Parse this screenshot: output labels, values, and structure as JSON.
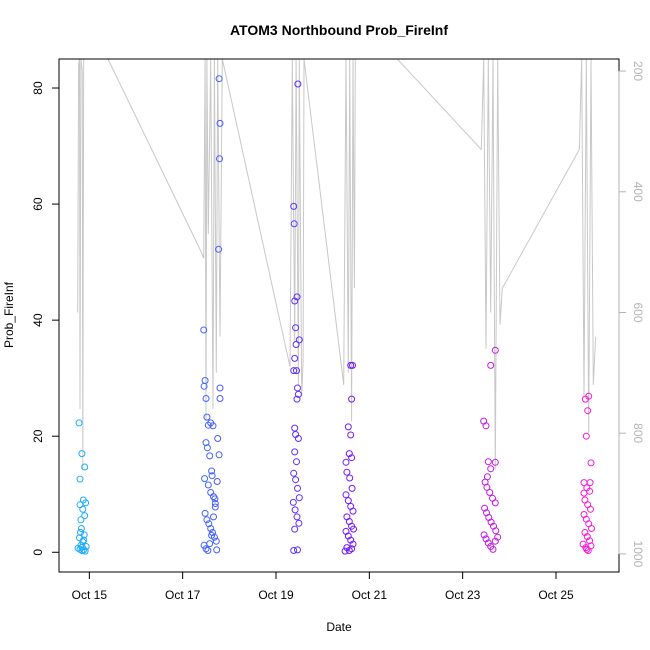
{
  "chart_data": {
    "type": "scatter",
    "title": "ATOM3 Northbound Prob_FireInf",
    "xlabel": "Date",
    "ylabel": "Prob_FireInf",
    "x_ticks": [
      "Oct 15",
      "Oct 17",
      "Oct 19",
      "Oct 21",
      "Oct 23",
      "Oct 25"
    ],
    "x_tick_days": [
      15,
      17,
      19,
      21,
      23,
      25
    ],
    "xlim": [
      14.35,
      26.35
    ],
    "ylim": [
      -3.4,
      85
    ],
    "y_ticks": [
      0,
      20,
      40,
      60,
      80
    ],
    "y2_ticks": [
      200,
      400,
      600,
      800,
      1000
    ],
    "y2lim": [
      1030,
      180
    ],
    "point_color_start": "#1ab0ff",
    "point_color_mid": "#6a1aff",
    "point_color_end": "#ff1ad6",
    "line_color": "#c8c8c8",
    "grid": false,
    "series": [
      {
        "values": [
          [
            14.78,
            22.3
          ],
          [
            14.8,
            0.5
          ],
          [
            14.82,
            1.2
          ],
          [
            14.84,
            0.3
          ],
          [
            14.79,
            2.5
          ],
          [
            14.81,
            3.4
          ],
          [
            14.83,
            4.1
          ],
          [
            14.85,
            0.9
          ],
          [
            14.86,
            1.8
          ],
          [
            14.88,
            0.4
          ],
          [
            14.8,
            8.2
          ],
          [
            14.87,
            9.0
          ],
          [
            14.9,
            14.7
          ],
          [
            14.84,
            17.0
          ],
          [
            14.8,
            12.6
          ],
          [
            14.9,
            6.3
          ],
          [
            14.92,
            8.5
          ],
          [
            14.86,
            7.4
          ],
          [
            14.82,
            5.6
          ],
          [
            14.88,
            2.1
          ],
          [
            14.91,
            0.2
          ],
          [
            14.93,
            1.0
          ],
          [
            14.76,
            0.7
          ],
          [
            14.89,
            3.0
          ],
          [
            17.45,
            38.3
          ],
          [
            17.48,
            29.6
          ],
          [
            17.46,
            28.6
          ],
          [
            17.5,
            26.5
          ],
          [
            17.52,
            23.3
          ],
          [
            17.55,
            21.9
          ],
          [
            17.6,
            22.3
          ],
          [
            17.65,
            21.8
          ],
          [
            17.5,
            18.9
          ],
          [
            17.53,
            18.0
          ],
          [
            17.58,
            16.6
          ],
          [
            17.62,
            14.0
          ],
          [
            17.47,
            12.7
          ],
          [
            17.55,
            11.6
          ],
          [
            17.6,
            10.3
          ],
          [
            17.66,
            9.6
          ],
          [
            17.7,
            8.4
          ],
          [
            17.48,
            6.7
          ],
          [
            17.52,
            5.6
          ],
          [
            17.56,
            4.9
          ],
          [
            17.6,
            4.1
          ],
          [
            17.64,
            3.4
          ],
          [
            17.68,
            2.6
          ],
          [
            17.72,
            1.9
          ],
          [
            17.46,
            1.2
          ],
          [
            17.5,
            0.6
          ],
          [
            17.54,
            0.3
          ],
          [
            17.58,
            1.5
          ],
          [
            17.62,
            2.9
          ],
          [
            17.66,
            6.1
          ],
          [
            17.7,
            7.8
          ],
          [
            17.74,
            12.2
          ],
          [
            17.78,
            16.8
          ],
          [
            17.75,
            19.6
          ],
          [
            17.8,
            28.3
          ],
          [
            17.8,
            26.5
          ],
          [
            17.77,
            52.2
          ],
          [
            17.79,
            67.8
          ],
          [
            17.8,
            73.9
          ],
          [
            17.78,
            81.6
          ],
          [
            17.73,
            0.4
          ],
          [
            17.69,
            9.2
          ],
          [
            17.63,
            13.2
          ],
          [
            19.38,
            59.6
          ],
          [
            19.39,
            56.6
          ],
          [
            19.45,
            44.0
          ],
          [
            19.4,
            43.3
          ],
          [
            19.42,
            38.7
          ],
          [
            19.5,
            36.6
          ],
          [
            19.43,
            35.8
          ],
          [
            19.4,
            33.4
          ],
          [
            19.38,
            31.3
          ],
          [
            19.44,
            31.3
          ],
          [
            19.46,
            28.3
          ],
          [
            19.48,
            27.2
          ],
          [
            19.45,
            26.4
          ],
          [
            19.4,
            21.4
          ],
          [
            19.42,
            20.3
          ],
          [
            19.48,
            19.6
          ],
          [
            19.4,
            17.3
          ],
          [
            19.44,
            15.6
          ],
          [
            19.38,
            13.6
          ],
          [
            19.42,
            12.5
          ],
          [
            19.46,
            11.0
          ],
          [
            19.5,
            9.4
          ],
          [
            19.37,
            8.6
          ],
          [
            19.41,
            7.3
          ],
          [
            19.45,
            6.1
          ],
          [
            19.49,
            5.0
          ],
          [
            19.4,
            4.0
          ],
          [
            19.46,
            0.4
          ],
          [
            19.38,
            0.3
          ],
          [
            19.47,
            80.7
          ],
          [
            20.5,
            15.5
          ],
          [
            20.55,
            21.6
          ],
          [
            20.6,
            20.2
          ],
          [
            20.57,
            17.0
          ],
          [
            20.62,
            16.3
          ],
          [
            20.52,
            13.8
          ],
          [
            20.58,
            12.8
          ],
          [
            20.63,
            11.0
          ],
          [
            20.5,
            9.9
          ],
          [
            20.55,
            8.9
          ],
          [
            20.6,
            7.9
          ],
          [
            20.65,
            7.1
          ],
          [
            20.52,
            6.1
          ],
          [
            20.57,
            5.3
          ],
          [
            20.62,
            4.5
          ],
          [
            20.5,
            3.6
          ],
          [
            20.55,
            2.8
          ],
          [
            20.6,
            2.1
          ],
          [
            20.65,
            1.4
          ],
          [
            20.52,
            0.8
          ],
          [
            20.57,
            0.3
          ],
          [
            20.62,
            0.6
          ],
          [
            20.6,
            32.2
          ],
          [
            20.64,
            32.2
          ],
          [
            20.62,
            26.4
          ],
          [
            20.48,
            0.2
          ],
          [
            20.66,
            4.0
          ],
          [
            23.45,
            22.6
          ],
          [
            23.5,
            21.8
          ],
          [
            23.6,
            32.2
          ],
          [
            23.7,
            34.8
          ],
          [
            23.55,
            15.6
          ],
          [
            23.6,
            14.4
          ],
          [
            23.7,
            15.5
          ],
          [
            23.48,
            12.1
          ],
          [
            23.52,
            11.2
          ],
          [
            23.58,
            10.3
          ],
          [
            23.64,
            9.3
          ],
          [
            23.7,
            8.5
          ],
          [
            23.47,
            7.6
          ],
          [
            23.51,
            6.8
          ],
          [
            23.56,
            6.0
          ],
          [
            23.61,
            5.2
          ],
          [
            23.66,
            4.5
          ],
          [
            23.71,
            3.7
          ],
          [
            23.46,
            3.0
          ],
          [
            23.5,
            2.3
          ],
          [
            23.55,
            1.6
          ],
          [
            23.6,
            1.0
          ],
          [
            23.65,
            0.5
          ],
          [
            23.7,
            1.9
          ],
          [
            23.75,
            2.6
          ],
          [
            23.53,
            13.0
          ],
          [
            25.63,
            26.4
          ],
          [
            25.7,
            26.9
          ],
          [
            25.68,
            24.4
          ],
          [
            25.65,
            20.0
          ],
          [
            25.75,
            15.4
          ],
          [
            25.6,
            12.0
          ],
          [
            25.66,
            11.1
          ],
          [
            25.72,
            10.5
          ],
          [
            25.62,
            9.0
          ],
          [
            25.68,
            8.2
          ],
          [
            25.74,
            7.4
          ],
          [
            25.6,
            6.5
          ],
          [
            25.65,
            5.7
          ],
          [
            25.7,
            4.9
          ],
          [
            25.76,
            4.1
          ],
          [
            25.62,
            3.4
          ],
          [
            25.67,
            2.7
          ],
          [
            25.72,
            2.0
          ],
          [
            25.58,
            1.4
          ],
          [
            25.64,
            0.8
          ],
          [
            25.69,
            0.3
          ],
          [
            25.75,
            1.1
          ],
          [
            25.6,
            10.2
          ],
          [
            25.73,
            12.0
          ],
          [
            25.66,
            0.5
          ]
        ]
      },
      {
        "type": "line",
        "axis": "right",
        "values": [
          [
            14.75,
            600
          ],
          [
            14.77,
            190
          ],
          [
            14.79,
            180
          ],
          [
            14.8,
            760
          ],
          [
            14.82,
            180
          ],
          [
            14.85,
            200
          ],
          [
            14.86,
            860
          ],
          [
            14.88,
            180
          ],
          [
            14.9,
            180
          ],
          [
            15.4,
            180
          ],
          [
            17.4,
            500
          ],
          [
            17.45,
            510
          ],
          [
            17.48,
            180
          ],
          [
            17.5,
            780
          ],
          [
            17.52,
            180
          ],
          [
            17.55,
            470
          ],
          [
            17.6,
            180
          ],
          [
            17.65,
            760
          ],
          [
            17.68,
            180
          ],
          [
            17.72,
            700
          ],
          [
            17.75,
            180
          ],
          [
            17.8,
            640
          ],
          [
            17.85,
            180
          ],
          [
            19.3,
            690
          ],
          [
            19.35,
            180
          ],
          [
            19.4,
            650
          ],
          [
            19.43,
            180
          ],
          [
            19.48,
            720
          ],
          [
            19.5,
            180
          ],
          [
            19.55,
            740
          ],
          [
            19.58,
            680
          ],
          [
            19.6,
            180
          ],
          [
            20.45,
            720
          ],
          [
            20.5,
            180
          ],
          [
            20.55,
            700
          ],
          [
            20.58,
            180
          ],
          [
            20.62,
            780
          ],
          [
            20.65,
            180
          ],
          [
            20.68,
            560
          ],
          [
            20.7,
            180
          ],
          [
            21.6,
            180
          ],
          [
            23.4,
            330
          ],
          [
            23.45,
            180
          ],
          [
            23.5,
            660
          ],
          [
            23.55,
            180
          ],
          [
            23.6,
            600
          ],
          [
            23.65,
            180
          ],
          [
            23.7,
            860
          ],
          [
            23.75,
            180
          ],
          [
            23.8,
            620
          ],
          [
            23.85,
            560
          ],
          [
            25.5,
            330
          ],
          [
            25.55,
            180
          ],
          [
            25.6,
            740
          ],
          [
            25.65,
            180
          ],
          [
            25.7,
            800
          ],
          [
            25.75,
            180
          ],
          [
            25.8,
            720
          ],
          [
            25.85,
            640
          ]
        ]
      }
    ]
  }
}
